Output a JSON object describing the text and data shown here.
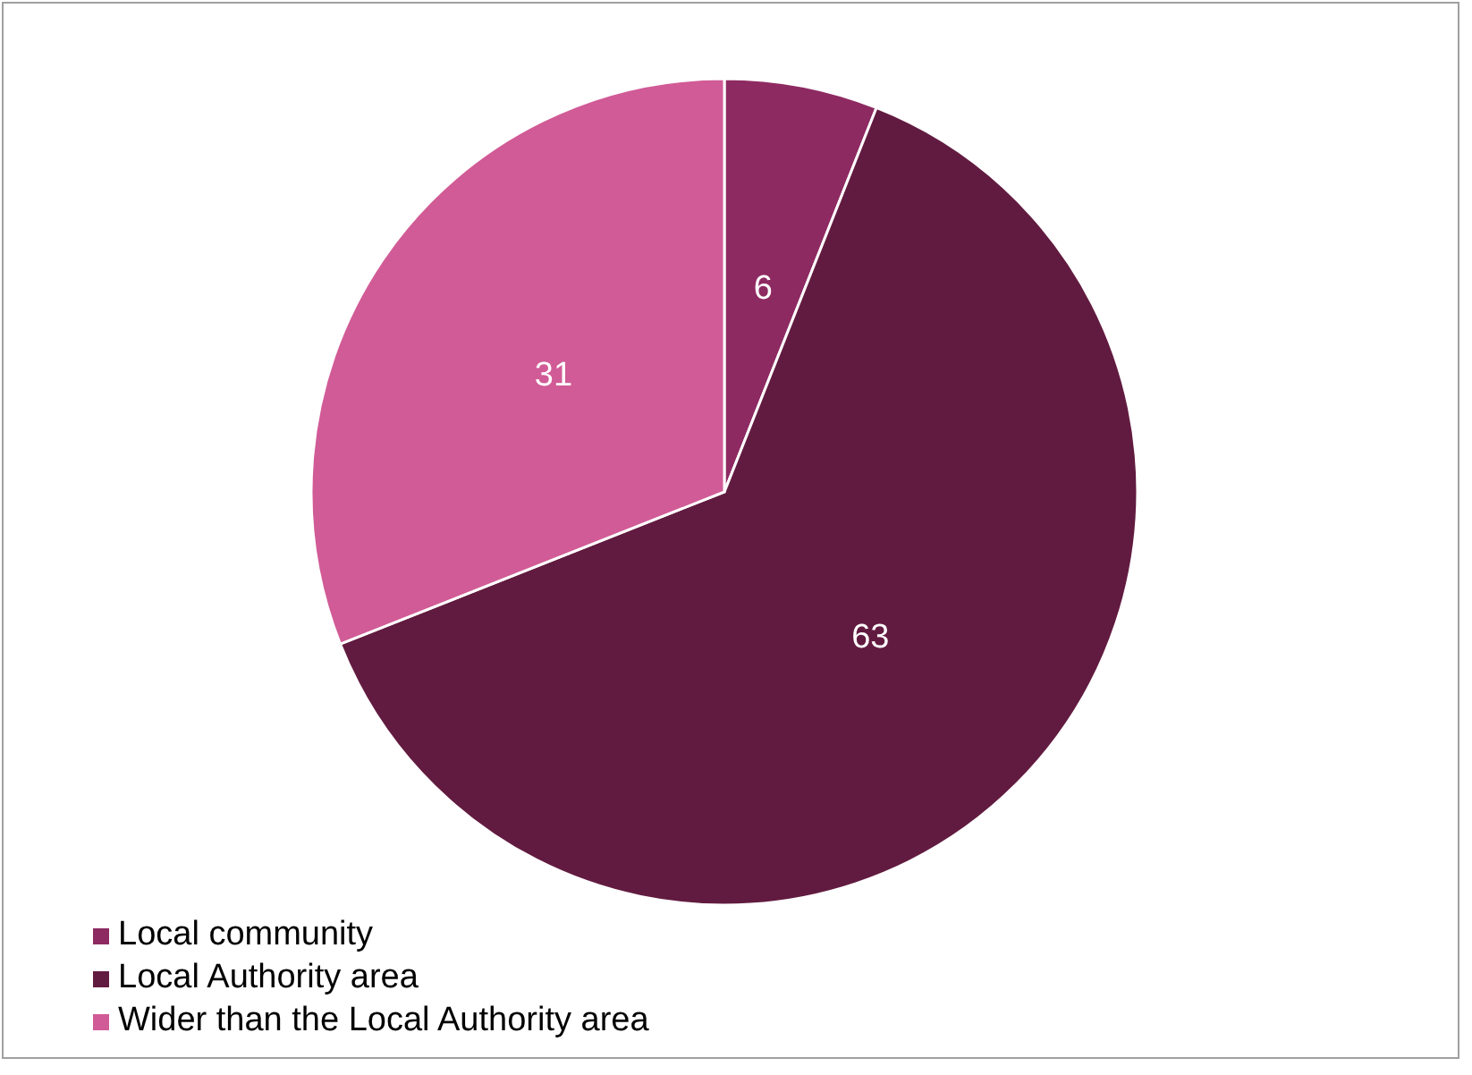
{
  "chart_data": {
    "type": "pie",
    "categories": [
      "Local community",
      "Local Authority area",
      "Wider than the Local Authority area"
    ],
    "values": [
      6,
      63,
      31
    ],
    "colors": [
      "#8e2a62",
      "#621b40",
      "#d15b96"
    ],
    "data_labels": true,
    "legend": "bottom"
  }
}
